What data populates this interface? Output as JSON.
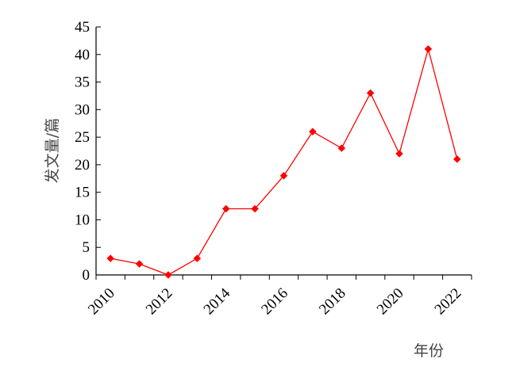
{
  "chart_data": {
    "type": "line",
    "title": "",
    "xlabel": "年份",
    "ylabel": "发文量/篇",
    "x": [
      2010,
      2011,
      2012,
      2013,
      2014,
      2015,
      2016,
      2017,
      2018,
      2019,
      2020,
      2021,
      2022
    ],
    "xticks": [
      "2010",
      "2012",
      "2014",
      "2016",
      "2018",
      "2020",
      "2022"
    ],
    "ylim": [
      0,
      45
    ],
    "yticks": [
      "0",
      "5",
      "10",
      "15",
      "20",
      "25",
      "30",
      "35",
      "40",
      "45"
    ],
    "series": [
      {
        "name": "",
        "values": [
          3,
          2,
          0,
          3,
          12,
          12,
          18,
          26,
          23,
          33,
          22,
          41,
          21
        ],
        "color": "#ff0000"
      }
    ],
    "grid": false,
    "legend": "none"
  }
}
